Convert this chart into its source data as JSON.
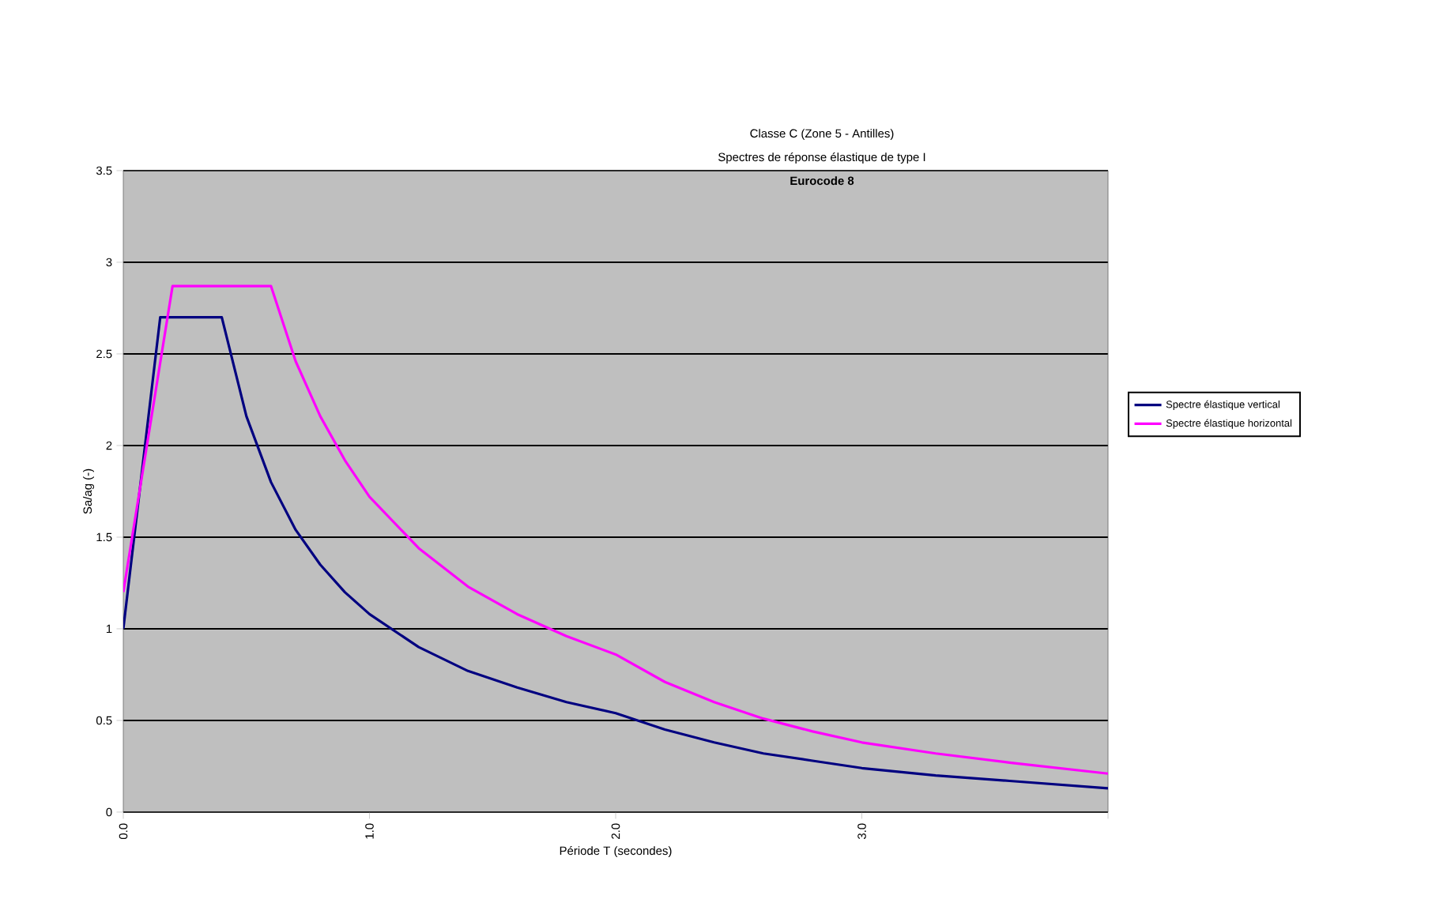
{
  "chart_data": {
    "type": "line",
    "title": "Classe C (Zone 5 - Antilles)",
    "subtitle": "Spectres de réponse élastique de type I",
    "annotations": [
      "Eurocode 8"
    ],
    "xlabel": "Période T (secondes)",
    "ylabel": "Sa/ag (-)",
    "xlim": [
      0,
      4
    ],
    "ylim": [
      0,
      3.5
    ],
    "xticks": [
      {
        "value": 0,
        "label": "0.0"
      },
      {
        "value": 1,
        "label": "1.0"
      },
      {
        "value": 2,
        "label": "2.0"
      },
      {
        "value": 3,
        "label": "3.0"
      },
      {
        "value": 4,
        "label": null
      }
    ],
    "yticks": [
      0,
      0.5,
      1,
      1.5,
      2,
      2.5,
      3,
      3.5
    ],
    "grid": "y",
    "legend": "right",
    "marker": "none",
    "line_style": "solid",
    "series": [
      {
        "name": "Spectre élastique vertical",
        "color": "#000080",
        "x": [
          0,
          0.15,
          0.4,
          0.5,
          0.6,
          0.7,
          0.8,
          0.9,
          1.0,
          1.2,
          1.4,
          1.6,
          1.8,
          2.0,
          2.2,
          2.4,
          2.6,
          2.8,
          3.0,
          3.3,
          3.6,
          4.0
        ],
        "values": [
          1.0,
          2.7,
          2.7,
          2.16,
          1.8,
          1.54,
          1.35,
          1.2,
          1.08,
          0.9,
          0.77,
          0.68,
          0.6,
          0.54,
          0.45,
          0.38,
          0.32,
          0.28,
          0.24,
          0.2,
          0.17,
          0.13
        ]
      },
      {
        "name": "Spectre élastique horizontal",
        "color": "#ff00ff",
        "x": [
          0,
          0.2,
          0.6,
          0.7,
          0.8,
          0.9,
          1.0,
          1.2,
          1.4,
          1.6,
          1.8,
          2.0,
          2.2,
          2.4,
          2.6,
          2.8,
          3.0,
          3.3,
          3.6,
          4.0
        ],
        "values": [
          1.2,
          2.87,
          2.87,
          2.46,
          2.16,
          1.92,
          1.72,
          1.44,
          1.23,
          1.08,
          0.96,
          0.86,
          0.71,
          0.6,
          0.51,
          0.44,
          0.38,
          0.32,
          0.27,
          0.21
        ]
      }
    ]
  }
}
